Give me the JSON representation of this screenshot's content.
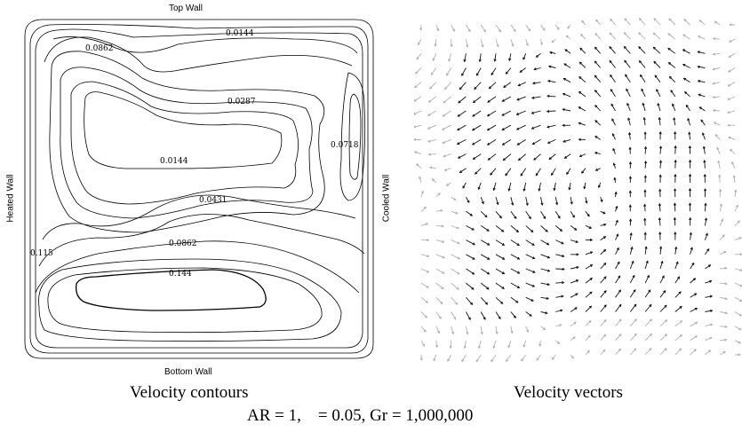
{
  "left_panel": {
    "top_wall": "Top Wall",
    "bottom_wall": "Bottom Wall",
    "left_wall": "Heated Wall",
    "contour_labels": [
      "0.0144",
      "0.0862",
      "0.0287",
      "0.0718",
      "0.0144",
      "0.0431",
      "0.115",
      "0.0862",
      "0.144"
    ],
    "caption": "Velocity contours"
  },
  "right_panel": {
    "left_wall": "Cooled Wall",
    "caption": "Velocity vectors"
  },
  "parameters_line": "AR = 1,    = 0.05, Gr = 1,000,000",
  "colors": {
    "contour": "#000000",
    "vector_dark": "#111111",
    "vector_light": "#b0b0b0"
  }
}
